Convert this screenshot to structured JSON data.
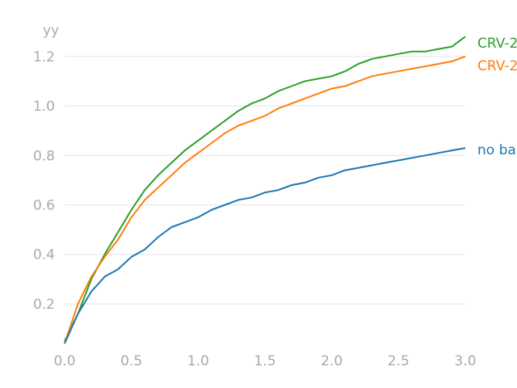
{
  "chart_data": {
    "type": "line",
    "title": "",
    "xlabel": "",
    "ylabel": "yy",
    "xlim": [
      0,
      3
    ],
    "ylim": [
      0.03,
      1.33
    ],
    "xticks": [
      "0.0",
      "0.5",
      "1.0",
      "1.5",
      "2.0",
      "2.5",
      "3.0"
    ],
    "yticks": [
      "0.2",
      "0.4",
      "0.6",
      "0.8",
      "1.0",
      "1.2"
    ],
    "grid": "horizontal",
    "legend": "inline-right",
    "series": [
      {
        "name": "CRV-2",
        "color": "#2ca02c",
        "x": [
          0.0,
          0.1,
          0.2,
          0.3,
          0.4,
          0.5,
          0.6,
          0.7,
          0.8,
          0.9,
          1.0,
          1.1,
          1.2,
          1.3,
          1.4,
          1.5,
          1.6,
          1.7,
          1.8,
          1.9,
          2.0,
          2.1,
          2.2,
          2.3,
          2.4,
          2.5,
          2.6,
          2.7,
          2.8,
          2.9,
          3.0
        ],
        "y": [
          0.05,
          0.16,
          0.3,
          0.4,
          0.49,
          0.58,
          0.66,
          0.72,
          0.77,
          0.82,
          0.86,
          0.9,
          0.94,
          0.98,
          1.01,
          1.03,
          1.06,
          1.08,
          1.1,
          1.11,
          1.12,
          1.14,
          1.17,
          1.19,
          1.2,
          1.21,
          1.22,
          1.22,
          1.23,
          1.24,
          1.28
        ]
      },
      {
        "name": "CRV-2",
        "color": "#ff7f0e",
        "x": [
          0.0,
          0.1,
          0.2,
          0.3,
          0.4,
          0.5,
          0.6,
          0.7,
          0.8,
          0.9,
          1.0,
          1.1,
          1.2,
          1.3,
          1.4,
          1.5,
          1.6,
          1.7,
          1.8,
          1.9,
          2.0,
          2.1,
          2.2,
          2.3,
          2.4,
          2.5,
          2.6,
          2.7,
          2.8,
          2.9,
          3.0
        ],
        "y": [
          0.04,
          0.2,
          0.31,
          0.39,
          0.46,
          0.55,
          0.62,
          0.67,
          0.72,
          0.77,
          0.81,
          0.85,
          0.89,
          0.92,
          0.94,
          0.96,
          0.99,
          1.01,
          1.03,
          1.05,
          1.07,
          1.08,
          1.1,
          1.12,
          1.13,
          1.14,
          1.15,
          1.16,
          1.17,
          1.18,
          1.2
        ]
      },
      {
        "name": "no ba",
        "color": "#1f77b4",
        "x": [
          0.0,
          0.1,
          0.2,
          0.3,
          0.4,
          0.5,
          0.6,
          0.7,
          0.8,
          0.9,
          1.0,
          1.1,
          1.2,
          1.3,
          1.4,
          1.5,
          1.6,
          1.7,
          1.8,
          1.9,
          2.0,
          2.1,
          2.2,
          2.3,
          2.4,
          2.5,
          2.6,
          2.7,
          2.8,
          2.9,
          3.0
        ],
        "y": [
          0.04,
          0.16,
          0.25,
          0.31,
          0.34,
          0.39,
          0.42,
          0.47,
          0.51,
          0.53,
          0.55,
          0.58,
          0.6,
          0.62,
          0.63,
          0.65,
          0.66,
          0.68,
          0.69,
          0.71,
          0.72,
          0.74,
          0.75,
          0.76,
          0.77,
          0.78,
          0.79,
          0.8,
          0.81,
          0.82,
          0.83
        ]
      }
    ]
  }
}
